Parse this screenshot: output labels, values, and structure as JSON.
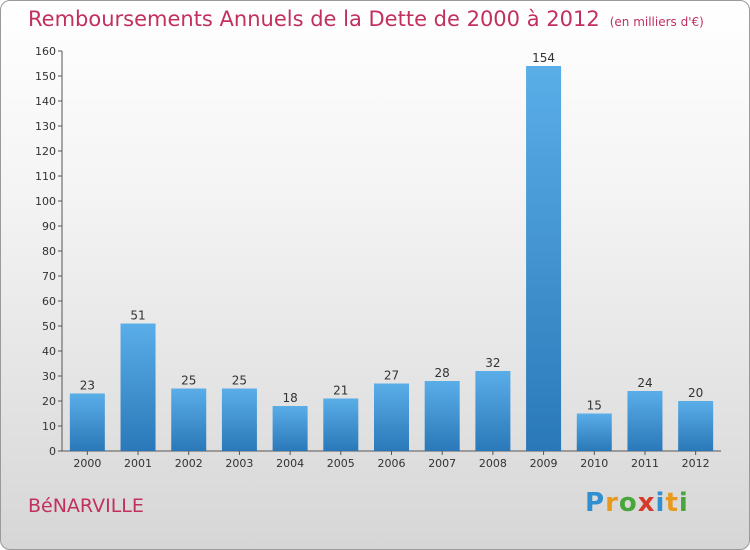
{
  "header": {
    "title": "Remboursements Annuels de la Dette de 2000 à 2012",
    "unit": "(en milliers d'€)"
  },
  "footer": {
    "commune": "BéNARVILLE",
    "brand_letters": [
      {
        "ch": "P",
        "color": "#2f8fd0"
      },
      {
        "ch": "r",
        "color": "#e89a1c"
      },
      {
        "ch": "o",
        "color": "#4aa63c"
      },
      {
        "ch": "x",
        "color": "#d83a2a"
      },
      {
        "ch": "i",
        "color": "#2f8fd0"
      },
      {
        "ch": "t",
        "color": "#e89a1c"
      },
      {
        "ch": "i",
        "color": "#4aa63c"
      }
    ]
  },
  "chart_data": {
    "type": "bar",
    "title": "Remboursements Annuels de la Dette de 2000 à 2012",
    "categories": [
      "2000",
      "2001",
      "2002",
      "2003",
      "2004",
      "2005",
      "2006",
      "2007",
      "2008",
      "2009",
      "2010",
      "2011",
      "2012"
    ],
    "values": [
      23,
      51,
      25,
      25,
      18,
      21,
      27,
      28,
      32,
      154,
      15,
      24,
      20
    ],
    "ylim": [
      0,
      160
    ],
    "ytick_step": 10,
    "grid": false,
    "bar_color_top": "#5aaee8",
    "bar_color_bottom": "#2a78b8"
  }
}
